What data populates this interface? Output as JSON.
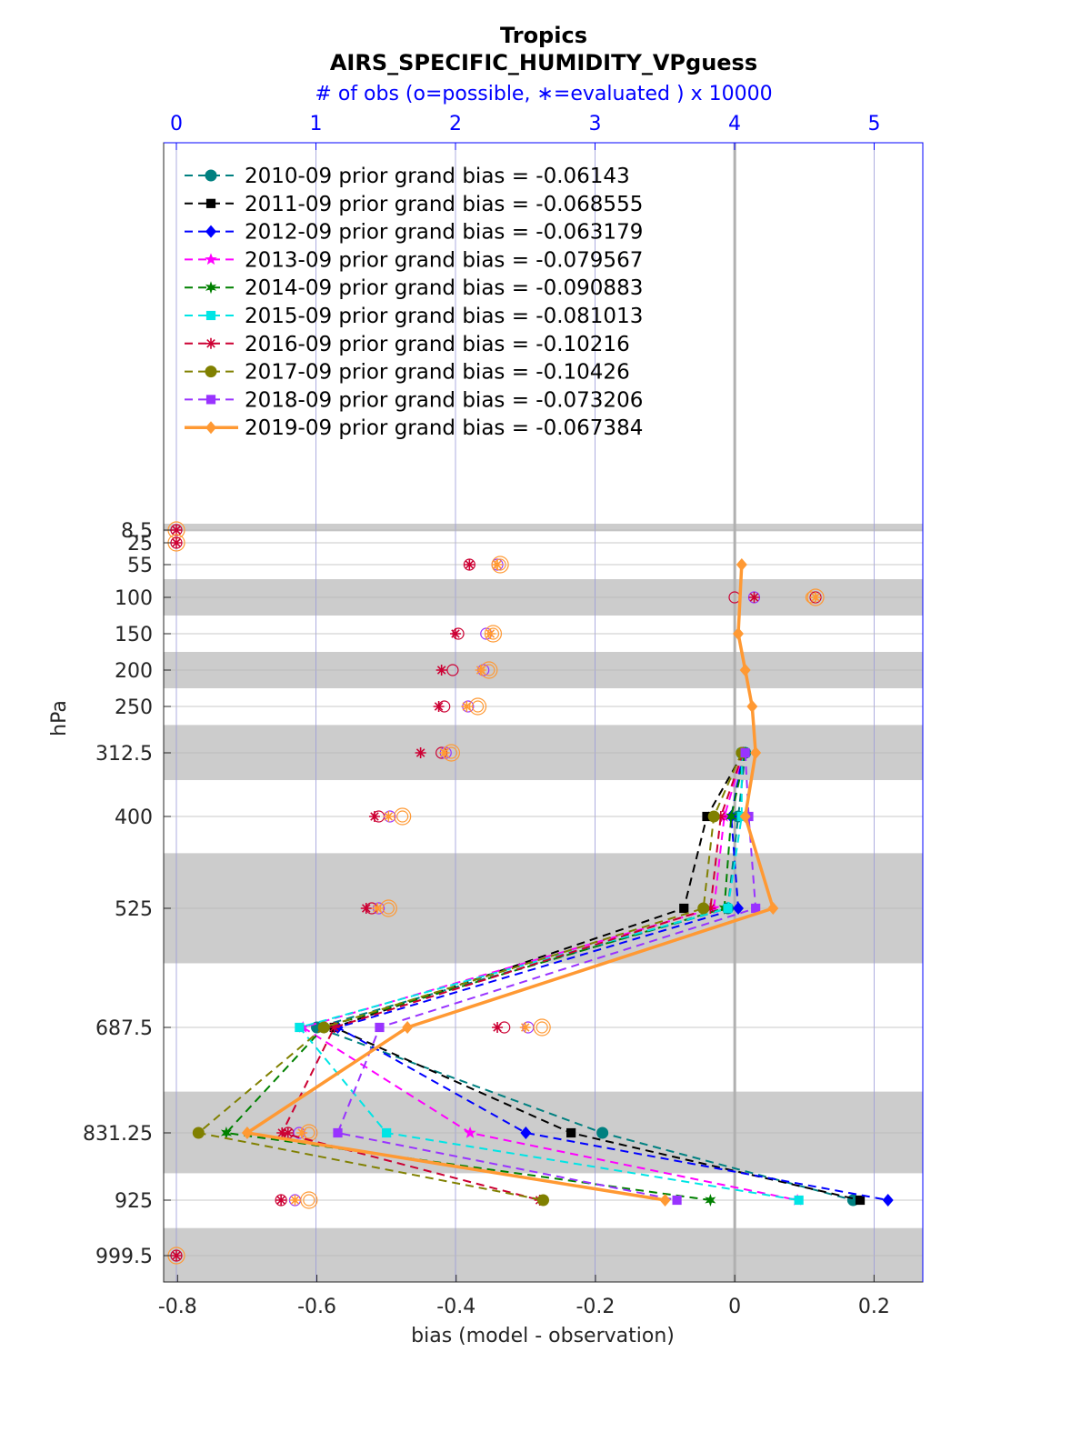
{
  "chart_data": {
    "type": "line",
    "title": "Tropics",
    "subtitle": "AIRS_SPECIFIC_HUMIDITY_VPguess",
    "top_axis_label": "# of obs (o=possible, ∗=evaluated ) x 10000",
    "xlabel": "bias (model - observation)",
    "ylabel": "hPa",
    "xlim": [
      -0.82,
      0.27
    ],
    "x_ticks": [
      -0.8,
      -0.6,
      -0.4,
      -0.2,
      0,
      0.2
    ],
    "x_tick_labels": [
      "-0.8",
      "-0.6",
      "-0.4",
      "-0.2",
      "0",
      "0.2"
    ],
    "top_xlim": [
      0,
      5.3
    ],
    "top_ticks": [
      0,
      1,
      2,
      3,
      4,
      5
    ],
    "top_tick_labels": [
      "0",
      "1",
      "2",
      "3",
      "4",
      "5"
    ],
    "y_scale": "pressure-levels (non-linear, increasing downward)",
    "levels": [
      8.5,
      25,
      55,
      100,
      150,
      200,
      250,
      312.5,
      400,
      525,
      687.5,
      831.25,
      925,
      999.5
    ],
    "level_labels": [
      "8.5",
      "25",
      "55",
      "100",
      "150",
      "200",
      "250",
      "312.5",
      "400",
      "525",
      "687.5",
      "831.25",
      "925",
      "999.5"
    ],
    "shaded_bands": [
      [
        0,
        10.1
      ],
      [
        75,
        125
      ],
      [
        175,
        225
      ],
      [
        275,
        350
      ],
      [
        450,
        600
      ],
      [
        775,
        887.5
      ],
      [
        962.5,
        1036
      ]
    ],
    "legend": {
      "placement": "top-left"
    },
    "series": [
      {
        "name": "2010-09 prior grand bias = -0.06143",
        "color": "#008080",
        "marker": "circle",
        "style": "dashed",
        "points": [
          [
            0.015,
            312.5
          ],
          [
            0.005,
            400
          ],
          [
            -0.01,
            525
          ],
          [
            -0.6,
            687.5
          ],
          [
            -0.19,
            831.25
          ],
          [
            0.17,
            925
          ]
        ]
      },
      {
        "name": "2011-09 prior grand bias = -0.068555",
        "color": "#000000",
        "marker": "square",
        "style": "dashed",
        "points": [
          [
            0.012,
            312.5
          ],
          [
            -0.04,
            400
          ],
          [
            -0.073,
            525
          ],
          [
            -0.575,
            687.5
          ],
          [
            -0.235,
            831.25
          ],
          [
            0.18,
            925
          ]
        ]
      },
      {
        "name": "2012-09 prior grand bias = -0.063179",
        "color": "#0000ff",
        "marker": "diamond",
        "style": "dashed",
        "points": [
          [
            0.012,
            312.5
          ],
          [
            -0.005,
            400
          ],
          [
            0.005,
            525
          ],
          [
            -0.57,
            687.5
          ],
          [
            -0.3,
            831.25
          ],
          [
            0.22,
            925
          ]
        ]
      },
      {
        "name": "2013-09 prior grand bias = -0.079567",
        "color": "#ff00ff",
        "marker": "star",
        "style": "dashed",
        "points": [
          [
            0.012,
            312.5
          ],
          [
            -0.015,
            400
          ],
          [
            -0.03,
            525
          ],
          [
            -0.62,
            687.5
          ],
          [
            -0.38,
            831.25
          ],
          [
            0.09,
            925
          ]
        ]
      },
      {
        "name": "2014-09 prior grand bias = -0.090883",
        "color": "#008000",
        "marker": "hexagram",
        "style": "dashed",
        "points": [
          [
            0.015,
            312.5
          ],
          [
            -0.005,
            400
          ],
          [
            -0.015,
            525
          ],
          [
            -0.59,
            687.5
          ],
          [
            -0.73,
            831.25
          ],
          [
            -0.035,
            925
          ]
        ]
      },
      {
        "name": "2015-09 prior grand bias = -0.081013",
        "color": "#00e5e5",
        "marker": "square",
        "style": "dashed",
        "points": [
          [
            0.01,
            312.5
          ],
          [
            0.01,
            400
          ],
          [
            -0.01,
            525
          ],
          [
            -0.625,
            687.5
          ],
          [
            -0.5,
            831.25
          ],
          [
            0.092,
            925
          ]
        ]
      },
      {
        "name": "2016-09 prior grand bias = -0.10216",
        "color": "#cc0033",
        "marker": "asterisk",
        "style": "dashed",
        "points": [
          [
            0.012,
            312.5
          ],
          [
            -0.02,
            400
          ],
          [
            -0.035,
            525
          ],
          [
            -0.575,
            687.5
          ],
          [
            -0.65,
            831.25
          ],
          [
            -0.28,
            925
          ]
        ]
      },
      {
        "name": "2017-09 prior grand bias = -0.10426",
        "color": "#808000",
        "marker": "circle",
        "style": "dashed",
        "points": [
          [
            0.01,
            312.5
          ],
          [
            -0.03,
            400
          ],
          [
            -0.045,
            525
          ],
          [
            -0.59,
            687.5
          ],
          [
            -0.77,
            831.25
          ],
          [
            -0.275,
            925
          ]
        ]
      },
      {
        "name": "2018-09 prior grand bias = -0.073206",
        "color": "#9933ff",
        "marker": "square",
        "style": "dashed",
        "points": [
          [
            0.015,
            312.5
          ],
          [
            0.02,
            400
          ],
          [
            0.03,
            525
          ],
          [
            -0.51,
            687.5
          ],
          [
            -0.57,
            831.25
          ],
          [
            -0.083,
            925
          ]
        ]
      },
      {
        "name": "2019-09 prior grand bias = -0.067384",
        "color": "#ff9933",
        "marker": "diamond",
        "style": "solid",
        "points": [
          [
            0.01,
            55
          ],
          [
            0.005,
            150
          ],
          [
            0.015,
            200
          ],
          [
            0.025,
            250
          ],
          [
            0.03,
            312.5
          ],
          [
            0.015,
            400
          ],
          [
            0.055,
            525
          ],
          [
            -0.47,
            687.5
          ],
          [
            -0.7,
            831.25
          ],
          [
            -0.1,
            925
          ]
        ]
      }
    ],
    "obs_counts": [
      {
        "level": 8.5,
        "possible": [
          0
        ],
        "evaluated": [
          0
        ]
      },
      {
        "level": 25,
        "possible": [
          0
        ],
        "evaluated": [
          0
        ]
      },
      {
        "level": 55,
        "possible": [
          2.1,
          2.3,
          2.32
        ],
        "evaluated": [
          2.1,
          2.3
        ]
      },
      {
        "level": 100,
        "possible": [
          4.0,
          4.14,
          4.55,
          4.58
        ],
        "evaluated": [
          4.14,
          4.58
        ]
      },
      {
        "level": 150,
        "possible": [
          2.02,
          2.22,
          2.27
        ],
        "evaluated": [
          2.0,
          2.25
        ]
      },
      {
        "level": 200,
        "possible": [
          1.98,
          2.2,
          2.24
        ],
        "evaluated": [
          1.9,
          2.18
        ]
      },
      {
        "level": 250,
        "possible": [
          1.92,
          2.09,
          2.16
        ],
        "evaluated": [
          1.88,
          2.08
        ]
      },
      {
        "level": 312.5,
        "possible": [
          1.9,
          1.93,
          1.97
        ],
        "evaluated": [
          1.75,
          1.92
        ]
      },
      {
        "level": 400,
        "possible": [
          1.45,
          1.53,
          1.62
        ],
        "evaluated": [
          1.42,
          1.52
        ]
      },
      {
        "level": 525,
        "possible": [
          1.4,
          1.45,
          1.52
        ],
        "evaluated": [
          1.36,
          1.44
        ]
      },
      {
        "level": 687.5,
        "possible": [
          2.35,
          2.52,
          2.62
        ],
        "evaluated": [
          2.3,
          2.5
        ]
      },
      {
        "level": 831.25,
        "possible": [
          0.8,
          0.88,
          0.95
        ],
        "evaluated": [
          0.8,
          0.9
        ]
      },
      {
        "level": 925,
        "possible": [
          0.75,
          0.85,
          0.95
        ],
        "evaluated": [
          0.75,
          0.85
        ]
      },
      {
        "level": 999.5,
        "possible": [
          0
        ],
        "evaluated": [
          0
        ]
      }
    ]
  }
}
